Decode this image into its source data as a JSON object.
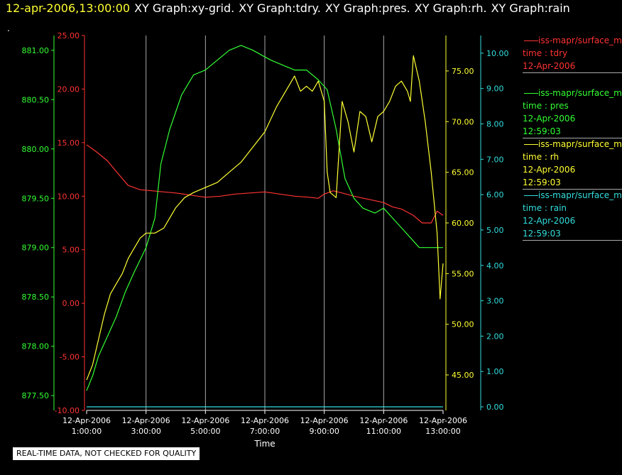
{
  "header": {
    "timestamp": "12-apr-2006,13:00:00",
    "graphs": [
      "XY Graph:xy-grid.",
      "XY Graph:tdry.",
      "XY Graph:pres.",
      "XY Graph:rh.",
      "XY Graph:rain"
    ]
  },
  "stray_mark": ".",
  "colors": {
    "background": "#000000",
    "grid": "#aaaaaa",
    "tdry": "#ff3333",
    "pres": "#33ff33",
    "rh": "#ffff33",
    "rain": "#33dddd",
    "text": "#ffffff"
  },
  "legend": [
    {
      "series": "tdry",
      "source": "iss-mapr/surface_m",
      "field": "time : tdry",
      "date": "12-Apr-2006",
      "time": ""
    },
    {
      "series": "pres",
      "source": "iss-mapr/surface_m",
      "field": "time : pres",
      "date": "12-Apr-2006",
      "time": "12:59:03"
    },
    {
      "series": "rh",
      "source": "iss-mapr/surface_m",
      "field": "time : rh",
      "date": "12-Apr-2006",
      "time": "12:59:03"
    },
    {
      "series": "rain",
      "source": "iss-mapr/surface_m",
      "field": "time : rain",
      "date": "12-Apr-2006",
      "time": "12:59:03"
    }
  ],
  "footer_note": "REAL-TIME DATA, NOT CHECKED FOR QUALITY",
  "chart_data": {
    "type": "line",
    "xlabel": "Time",
    "x_range_hours": [
      1,
      13
    ],
    "x_ticks": [
      {
        "hour": 1,
        "date": "12-Apr-2006",
        "time": "1:00:00"
      },
      {
        "hour": 3,
        "date": "12-Apr-2006",
        "time": "3:00:00"
      },
      {
        "hour": 5,
        "date": "12-Apr-2006",
        "time": "5:00:00"
      },
      {
        "hour": 7,
        "date": "12-Apr-2006",
        "time": "7:00:00"
      },
      {
        "hour": 9,
        "date": "12-Apr-2006",
        "time": "9:00:00"
      },
      {
        "hour": 11,
        "date": "12-Apr-2006",
        "time": "11:00:00"
      },
      {
        "hour": 13,
        "date": "12-Apr-2006",
        "time": "13:00:00"
      }
    ],
    "grid": "vertical",
    "axes": {
      "pres": {
        "side": "left",
        "range": [
          877.35,
          881.15
        ],
        "ticks": [
          "877.50",
          "878.00",
          "878.50",
          "879.00",
          "879.50",
          "880.00",
          "880.50",
          "881.00"
        ]
      },
      "tdry": {
        "side": "left",
        "range": [
          -10,
          25
        ],
        "ticks": [
          "-10.00",
          "-5.00",
          "0.00",
          "5.00",
          "10.00",
          "15.00",
          "20.00",
          "25.00"
        ]
      },
      "rh": {
        "side": "right",
        "range": [
          41.5,
          78.5
        ],
        "ticks": [
          "45.00",
          "50.00",
          "55.00",
          "60.00",
          "65.00",
          "70.00",
          "75.00"
        ]
      },
      "rain": {
        "side": "right",
        "range": [
          -0.1,
          10.5
        ],
        "ticks": [
          "0.00",
          "1.00",
          "2.00",
          "3.00",
          "4.00",
          "5.00",
          "6.00",
          "7.00",
          "8.00",
          "9.00",
          "10.00"
        ]
      }
    },
    "series": [
      {
        "name": "tdry",
        "axis": "tdry",
        "x": [
          1.0,
          1.3,
          1.7,
          2.0,
          2.4,
          2.8,
          3.2,
          3.6,
          4.0,
          4.5,
          5.0,
          5.5,
          6.0,
          6.5,
          7.0,
          7.5,
          8.0,
          8.5,
          8.8,
          9.0,
          9.3,
          9.6,
          10.0,
          10.5,
          11.0,
          11.3,
          11.6,
          12.0,
          12.3,
          12.6,
          12.8,
          13.0
        ],
        "y": [
          14.8,
          14.2,
          13.3,
          12.3,
          11.0,
          10.6,
          10.5,
          10.4,
          10.3,
          10.1,
          9.9,
          10.0,
          10.2,
          10.3,
          10.4,
          10.2,
          10.0,
          9.9,
          9.8,
          10.2,
          10.5,
          10.3,
          10.0,
          9.7,
          9.4,
          9.0,
          8.8,
          8.2,
          7.5,
          7.5,
          8.6,
          8.2
        ]
      },
      {
        "name": "pres",
        "axis": "pres",
        "x": [
          1.0,
          1.2,
          1.4,
          1.7,
          2.0,
          2.3,
          2.6,
          3.0,
          3.3,
          3.5,
          3.8,
          4.2,
          4.6,
          5.0,
          5.4,
          5.8,
          6.2,
          6.6,
          6.9,
          7.2,
          7.6,
          8.0,
          8.4,
          8.8,
          9.1,
          9.4,
          9.7,
          10.0,
          10.3,
          10.7,
          11.0,
          11.3,
          11.6,
          11.9,
          12.2,
          12.5,
          12.8,
          13.0
        ],
        "y": [
          877.55,
          877.7,
          877.9,
          878.1,
          878.3,
          878.55,
          878.75,
          879.0,
          879.3,
          879.85,
          880.2,
          880.55,
          880.75,
          880.8,
          880.9,
          881.0,
          881.05,
          881.0,
          880.95,
          880.9,
          880.85,
          880.8,
          880.8,
          880.7,
          880.6,
          880.2,
          879.7,
          879.5,
          879.4,
          879.35,
          879.4,
          879.3,
          879.2,
          879.1,
          879.0,
          879.0,
          879.0,
          879.0
        ]
      },
      {
        "name": "rh",
        "axis": "rh",
        "x": [
          1.0,
          1.2,
          1.4,
          1.6,
          1.8,
          2.0,
          2.2,
          2.4,
          2.6,
          2.8,
          3.0,
          3.3,
          3.6,
          3.8,
          4.0,
          4.3,
          4.6,
          5.0,
          5.4,
          5.8,
          6.2,
          6.6,
          7.0,
          7.4,
          7.8,
          8.0,
          8.2,
          8.4,
          8.6,
          8.8,
          9.0,
          9.1,
          9.2,
          9.4,
          9.6,
          9.8,
          10.0,
          10.2,
          10.4,
          10.6,
          10.8,
          11.0,
          11.2,
          11.4,
          11.6,
          11.8,
          11.9,
          12.0,
          12.2,
          12.4,
          12.6,
          12.8,
          12.9,
          13.0
        ],
        "y": [
          44.5,
          46.0,
          48.5,
          51.0,
          53.0,
          54.0,
          55.0,
          56.5,
          57.5,
          58.5,
          59.0,
          59.0,
          59.5,
          60.5,
          61.5,
          62.5,
          63.0,
          63.5,
          64.0,
          65.0,
          66.0,
          67.5,
          69.0,
          71.5,
          73.5,
          74.5,
          73.0,
          73.5,
          73.0,
          74.0,
          72.0,
          65.0,
          63.0,
          62.5,
          72.0,
          70.0,
          67.0,
          71.0,
          70.5,
          68.0,
          70.5,
          71.0,
          72.0,
          73.5,
          74.0,
          73.0,
          72.0,
          76.5,
          74.0,
          70.0,
          65.0,
          59.0,
          52.5,
          56.0
        ]
      },
      {
        "name": "rain",
        "axis": "rain",
        "x": [
          1.0,
          13.0
        ],
        "y": [
          0.0,
          0.0
        ]
      }
    ]
  }
}
